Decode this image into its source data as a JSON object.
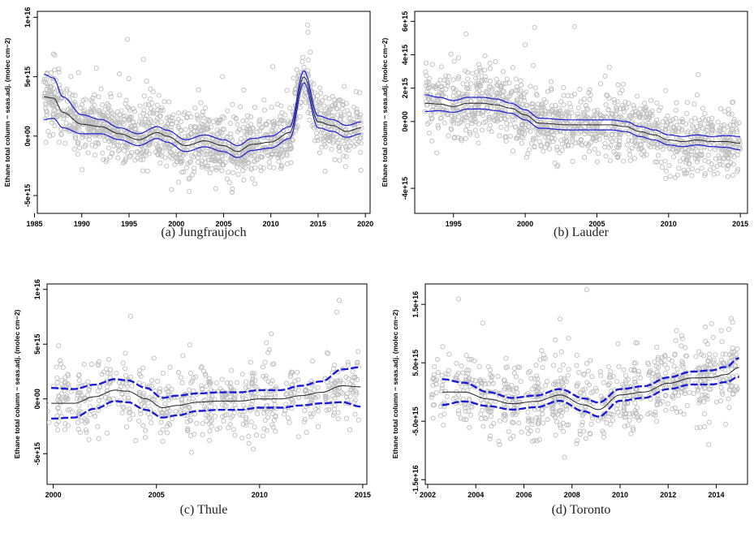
{
  "chart_data": [
    {
      "type": "scatter",
      "caption": "(a)  Jungfraujoch",
      "ylabel": "Ethane total column − seas.adj. (molec cm−2)",
      "xlabel": "",
      "xlim": [
        1985.3,
        2020.5
      ],
      "ylim": [
        -6500000000000000.0,
        1.05e+16
      ],
      "xticks": [
        1985,
        1990,
        1995,
        2000,
        2005,
        2010,
        2015,
        2020
      ],
      "xtick_labels": [
        "1985",
        "1990",
        "1995",
        "2000",
        "2005",
        "2010",
        "2015",
        "2020"
      ],
      "yticks": [
        -5000000000000000.0,
        0,
        5000000000000000.0,
        1e+16
      ],
      "ytick_labels": [
        "-5e+15",
        "0e+00",
        "5e+15",
        "1e+16"
      ],
      "x_range": [
        1986,
        2019.6
      ],
      "fit": {
        "x": [
          1986,
          1987,
          1988,
          1990,
          1992,
          1994,
          1996,
          1998,
          1999,
          2001,
          2003,
          2005,
          2006.5,
          2008,
          2010,
          2012,
          2013.5,
          2015,
          2016.5,
          2018,
          2019.6
        ],
        "y": [
          3300000000000000.0,
          3200000000000000.0,
          2000000000000000.0,
          1000000000000000.0,
          800000000000000.0,
          200000000000000.0,
          -300000000000000.0,
          300000000000000.0,
          0,
          -800000000000000.0,
          -400000000000000.0,
          -800000000000000.0,
          -1300000000000000.0,
          -700000000000000.0,
          -500000000000000.0,
          300000000000000.0,
          5000000000000000.0,
          1200000000000000.0,
          900000000000000.0,
          400000000000000.0,
          700000000000000.0
        ]
      },
      "ci_halfwidth": [
        1900000000000000.0,
        1700000000000000.0,
        1300000000000000.0,
        800000000000000.0,
        600000000000000.0,
        500000000000000.0,
        500000000000000.0,
        500000000000000.0,
        500000000000000.0,
        500000000000000.0,
        500000000000000.0,
        500000000000000.0,
        500000000000000.0,
        500000000000000.0,
        500000000000000.0,
        500000000000000.0,
        500000000000000.0,
        500000000000000.0,
        500000000000000.0,
        500000000000000.0,
        500000000000000.0
      ],
      "series_note": "",
      "ci_style": "solid",
      "points": {
        "count": 1500,
        "spread": 1300000000000000.0,
        "min": -5000000000000000.0,
        "max": 9700000000000000.0
      },
      "gaps": []
    },
    {
      "type": "scatter",
      "caption": "(b)  Lauder",
      "ylabel": "Ethane total column − seas.adj. (molec cm−2)",
      "xlabel": "",
      "xlim": [
        1992.3,
        2015.5
      ],
      "ylim": [
        -5500000000000000.0,
        6600000000000000.0
      ],
      "xticks": [
        1995,
        2000,
        2005,
        2010,
        2015
      ],
      "xtick_labels": [
        "1995",
        "2000",
        "2005",
        "2010",
        "2015"
      ],
      "yticks": [
        -4000000000000000.0,
        0,
        2000000000000000.0,
        4000000000000000.0,
        6000000000000000.0
      ],
      "ytick_labels": [
        "-4e+15",
        "0e+00",
        "2e+15",
        "4e+15",
        "6e+15"
      ],
      "x_range": [
        1993,
        2015
      ],
      "fit": {
        "x": [
          1993,
          1994,
          1995,
          1996,
          1997,
          1998,
          1999,
          2000,
          2001,
          2003,
          2005,
          2006,
          2007,
          2008,
          2009,
          2010,
          2011,
          2012,
          2013,
          2014,
          2015
        ],
        "y": [
          1100000000000000.0,
          1050000000000000.0,
          900000000000000.0,
          1100000000000000.0,
          1100000000000000.0,
          1000000000000000.0,
          800000000000000.0,
          400000000000000.0,
          -100000000000000.0,
          -200000000000000.0,
          -200000000000000.0,
          -200000000000000.0,
          -300000000000000.0,
          -600000000000000.0,
          -800000000000000.0,
          -1100000000000000.0,
          -1200000000000000.0,
          -1100000000000000.0,
          -1200000000000000.0,
          -1200000000000000.0,
          -1300000000000000.0
        ]
      },
      "ci_halfwidth": [
        500000000000000.0,
        400000000000000.0,
        350000000000000.0,
        350000000000000.0,
        350000000000000.0,
        350000000000000.0,
        300000000000000.0,
        300000000000000.0,
        300000000000000.0,
        300000000000000.0,
        300000000000000.0,
        300000000000000.0,
        300000000000000.0,
        300000000000000.0,
        300000000000000.0,
        300000000000000.0,
        300000000000000.0,
        300000000000000.0,
        300000000000000.0,
        350000000000000.0,
        400000000000000.0
      ],
      "series_note": "",
      "ci_style": "solid",
      "points": {
        "count": 1300,
        "spread": 1000000000000000.0,
        "min": -4300000000000000.0,
        "max": 6400000000000000.0
      },
      "gaps": []
    },
    {
      "type": "scatter",
      "caption": "(c)  Thule",
      "ylabel": "Ethane total column − seas.adj. (molec cm−2)",
      "xlabel": "",
      "xlim": [
        1999.7,
        2015.2
      ],
      "ylim": [
        -7800000000000000.0,
        1.05e+16
      ],
      "xticks": [
        2000,
        2005,
        2010,
        2015
      ],
      "xtick_labels": [
        "2000",
        "2005",
        "2010",
        "2015"
      ],
      "yticks": [
        -5000000000000000.0,
        0,
        5000000000000000.0,
        1e+16
      ],
      "ytick_labels": [
        "-5e+15",
        "0e+00",
        "5e+15",
        "1e+16"
      ],
      "x_range": [
        1999.9,
        2014.9
      ],
      "fit": {
        "x": [
          1999.9,
          2001,
          2002,
          2003,
          2003.6,
          2004.5,
          2005.3,
          2006,
          2007,
          2008,
          2009,
          2010,
          2011,
          2012,
          2013,
          2014,
          2014.9
        ],
        "y": [
          -400000000000000.0,
          -400000000000000.0,
          200000000000000.0,
          800000000000000.0,
          700000000000000.0,
          0,
          -800000000000000.0,
          -600000000000000.0,
          -300000000000000.0,
          -200000000000000.0,
          -200000000000000.0,
          0,
          0,
          300000000000000.0,
          600000000000000.0,
          1200000000000000.0,
          1100000000000000.0
        ]
      },
      "ci_halfwidth": [
        1400000000000000.0,
        1300000000000000.0,
        1100000000000000.0,
        1000000000000000.0,
        1000000000000000.0,
        1000000000000000.0,
        900000000000000.0,
        900000000000000.0,
        800000000000000.0,
        800000000000000.0,
        800000000000000.0,
        800000000000000.0,
        800000000000000.0,
        900000000000000.0,
        1000000000000000.0,
        1500000000000000.0,
        1800000000000000.0
      ],
      "series_note": "",
      "ci_style": "dashed",
      "points": {
        "count": 700,
        "spread": 1600000000000000.0,
        "min": -7500000000000000.0,
        "max": 9000000000000000.0
      },
      "gaps": [
        [
          2000.9,
          2001.4
        ]
      ]
    },
    {
      "type": "scatter",
      "caption": "(d)  Toronto",
      "ylabel": "Ethane total column − seas.adj. (molec cm−2)",
      "xlabel": "",
      "xlim": [
        2001.9,
        2015.3
      ],
      "ylim": [
        -1.58e+16,
        1.85e+16
      ],
      "xticks": [
        2002,
        2004,
        2006,
        2008,
        2010,
        2012,
        2014
      ],
      "xtick_labels": [
        "2002",
        "2004",
        "2006",
        "2008",
        "2010",
        "2012",
        "2014"
      ],
      "yticks": [
        -1.5e+16,
        -5000000000000000.0,
        5000000000000000.0,
        1.5e+16
      ],
      "ytick_labels": [
        "-1.5e+16",
        "-5.0e+15",
        "5.0e+15",
        "1.5e+16"
      ],
      "x_range": [
        2002.6,
        2014.95
      ],
      "fit": {
        "x": [
          2002.6,
          2003.5,
          2004.5,
          2005.5,
          2006.5,
          2007.5,
          2008.5,
          2009.1,
          2010,
          2011,
          2012,
          2013,
          2013.8,
          2014.4,
          2014.95
        ],
        "y": [
          0,
          0,
          -1200000000000000.0,
          -2000000000000000.0,
          -1600000000000000.0,
          -500000000000000.0,
          -2200000000000000.0,
          -3000000000000000.0,
          -500000000000000.0,
          0,
          1500000000000000.0,
          2400000000000000.0,
          2500000000000000.0,
          3000000000000000.0,
          4200000000000000.0
        ]
      },
      "ci_halfwidth": [
        2200000000000000.0,
        1600000000000000.0,
        1200000000000000.0,
        1000000000000000.0,
        1000000000000000.0,
        1000000000000000.0,
        1100000000000000.0,
        1200000000000000.0,
        1000000000000000.0,
        1000000000000000.0,
        1000000000000000.0,
        1100000000000000.0,
        1200000000000000.0,
        1300000000000000.0,
        1600000000000000.0
      ],
      "series_note": "",
      "ci_style": "dashed",
      "points": {
        "count": 850,
        "spread": 3200000000000000.0,
        "min": -1.45e+16,
        "max": 1.75e+16
      },
      "gaps": [
        [
          2009.2,
          2009.6
        ]
      ]
    }
  ],
  "colors": {
    "points": "#bdbdbd",
    "fit": "#222222",
    "ci": "#1a1adb",
    "axis": "#000000"
  }
}
